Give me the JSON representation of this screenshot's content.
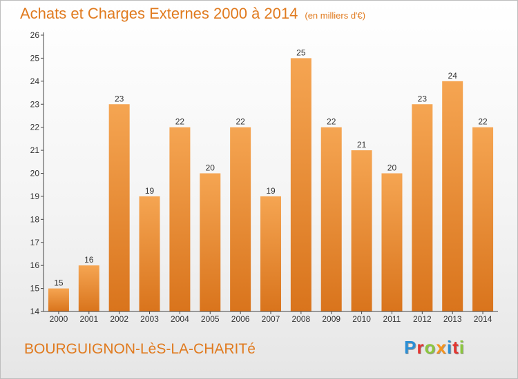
{
  "title": "Achats et Charges Externes 2000 à 2014",
  "unit": "(en milliers d'€)",
  "commune": "BOURGUIGNON-LèS-LA-CHARITé",
  "brand": {
    "letters": [
      "P",
      "r",
      "o",
      "x",
      "i",
      "t",
      "i"
    ],
    "colors": [
      "#2a8fd6",
      "#e3342f",
      "#8cc63f",
      "#f7941d",
      "#2a8fd6",
      "#e3342f",
      "#8cc63f"
    ]
  },
  "colors": {
    "bar_top": "#f5a552",
    "bar_bottom": "#d9741c",
    "title": "#e07a1e"
  },
  "chart_data": {
    "type": "bar",
    "categories": [
      "2000",
      "2001",
      "2002",
      "2003",
      "2004",
      "2005",
      "2006",
      "2007",
      "2008",
      "2009",
      "2010",
      "2011",
      "2012",
      "2013",
      "2014"
    ],
    "values": [
      15,
      16,
      23,
      19,
      22,
      20,
      22,
      19,
      25,
      22,
      21,
      20,
      23,
      24,
      22
    ],
    "data_labels": [
      "15",
      "16",
      "23",
      "19",
      "22",
      "20",
      "22",
      "19",
      "25",
      "22",
      "21",
      "20",
      "23",
      "24",
      "22"
    ],
    "yticks": [
      "14",
      "15",
      "16",
      "17",
      "18",
      "19",
      "20",
      "21",
      "22",
      "23",
      "24",
      "25",
      "26"
    ],
    "ylim": [
      14,
      26
    ],
    "title": "Achats et Charges Externes 2000 à 2014",
    "xlabel": "",
    "ylabel": "",
    "grid": false,
    "legend": "none"
  }
}
